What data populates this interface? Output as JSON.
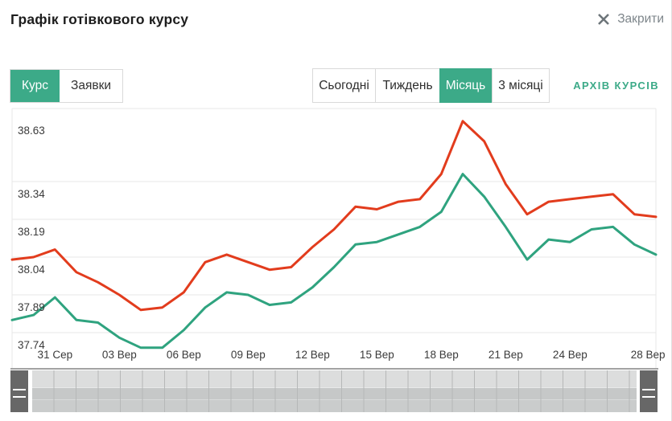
{
  "header": {
    "title": "Графік готівкового курсу",
    "close_label": "Закрити"
  },
  "tabs": [
    {
      "label": "Курс",
      "active": true
    },
    {
      "label": "Заявки",
      "active": false
    }
  ],
  "periods": [
    {
      "label": "Сьогодні",
      "active": false
    },
    {
      "label": "Тиждень",
      "active": false
    },
    {
      "label": "Місяць",
      "active": true
    },
    {
      "label": "3 місяці",
      "active": false
    }
  ],
  "archive_link": "АРХІВ КУРСІВ",
  "colors": {
    "accent_green": "#3caa88",
    "line_red": "#e23c1d",
    "line_green": "#2fa37f",
    "grid": "#e7e7e7",
    "navigator_handle": "#676767"
  },
  "chart_data": {
    "type": "line",
    "x": [
      "29 Сер",
      "30 Сер",
      "31 Сер",
      "01 Вер",
      "02 Вер",
      "03 Вер",
      "04 Вер",
      "05 Вер",
      "06 Вер",
      "07 Вер",
      "08 Вер",
      "09 Вер",
      "10 Вер",
      "11 Вер",
      "12 Вер",
      "13 Вер",
      "14 Вер",
      "15 Вер",
      "16 Вер",
      "17 Вер",
      "18 Вер",
      "19 Вер",
      "20 Вер",
      "21 Вер",
      "22 Вер",
      "23 Вер",
      "24 Вер",
      "25 Вер",
      "26 Вер",
      "27 Вер",
      "28 Вер"
    ],
    "x_tick_labels": [
      "31 Сер",
      "03 Вер",
      "06 Вер",
      "09 Вер",
      "12 Вер",
      "15 Вер",
      "18 Вер",
      "21 Вер",
      "24 Вер",
      "28 Вер"
    ],
    "x_tick_indices": [
      2,
      5,
      8,
      11,
      14,
      17,
      20,
      23,
      26,
      30
    ],
    "y_ticks": [
      38.63,
      38.34,
      38.19,
      38.04,
      37.89,
      37.74
    ],
    "y_tick_labels": [
      "38.63",
      "38.34",
      "38.19",
      "38.04",
      "37.89",
      "37.74"
    ],
    "ylim": [
      37.59,
      38.66
    ],
    "grid": "horizontal-only",
    "legend": "none",
    "series": [
      {
        "name": "red-line",
        "color": "#e23c1d",
        "values": [
          38.03,
          38.04,
          38.07,
          37.98,
          37.94,
          37.89,
          37.83,
          37.84,
          37.9,
          38.02,
          38.05,
          38.02,
          37.99,
          38.0,
          38.08,
          38.15,
          38.24,
          38.23,
          38.26,
          38.27,
          38.37,
          38.58,
          38.5,
          38.33,
          38.21,
          38.26,
          38.27,
          38.28,
          38.29,
          38.21,
          38.2
        ]
      },
      {
        "name": "green-line",
        "color": "#2fa37f",
        "values": [
          37.79,
          37.81,
          37.88,
          37.79,
          37.78,
          37.72,
          37.68,
          37.68,
          37.75,
          37.84,
          37.9,
          37.89,
          37.85,
          37.86,
          37.92,
          38.0,
          38.09,
          38.1,
          38.13,
          38.16,
          38.22,
          38.37,
          38.28,
          38.16,
          38.03,
          38.11,
          38.1,
          38.15,
          38.16,
          38.09,
          38.05
        ]
      }
    ]
  }
}
